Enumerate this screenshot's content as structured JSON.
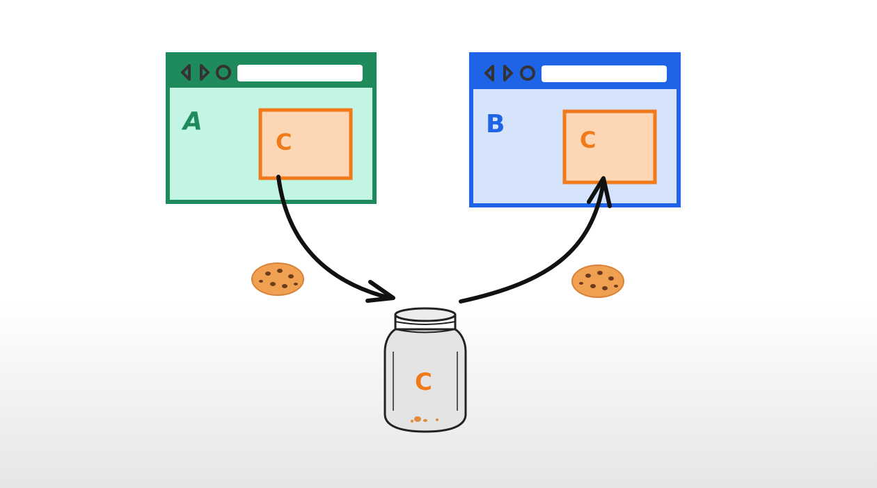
{
  "site_a": {
    "label": "A",
    "frame_color": "#1f8a5c",
    "fill_color": "#c2f5e3",
    "embed_label": "C"
  },
  "site_b": {
    "label": "B",
    "frame_color": "#1f63e6",
    "fill_color": "#d5e3fb",
    "embed_label": "C"
  },
  "embed": {
    "frame_color": "#f07a1a",
    "fill_color": "#fdd6b6"
  },
  "jar": {
    "label": "C"
  },
  "icons": {
    "cookie_left": "cookie-icon",
    "cookie_right": "cookie-icon",
    "jar": "jar-icon"
  }
}
